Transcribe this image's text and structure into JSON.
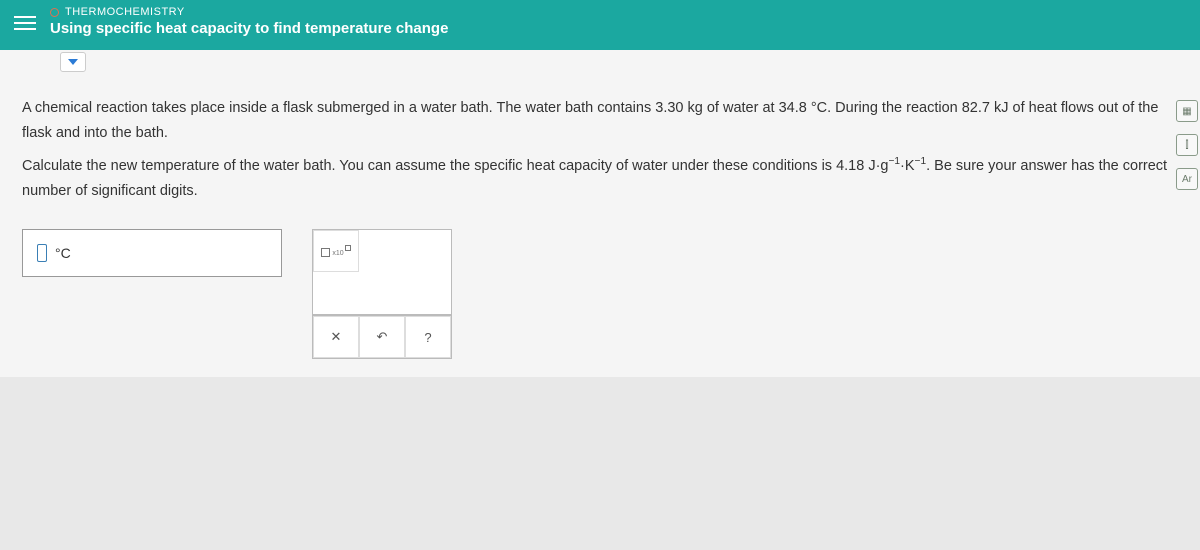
{
  "header": {
    "category": "THERMOCHEMISTRY",
    "topic": "Using specific heat capacity to find temperature change"
  },
  "problem": {
    "paragraph1_part1": "A chemical reaction takes place inside a flask submerged in a water bath. The water bath contains ",
    "mass": "3.30 kg",
    "paragraph1_part2": " of water at ",
    "temp": "34.8 °C",
    "paragraph1_part3": ". During the reaction ",
    "energy": "82.7 kJ",
    "paragraph1_part4": " of heat flows out of the flask and into the bath.",
    "paragraph2_part1": "Calculate the new temperature of the water bath. You can assume the specific heat capacity of water under these conditions is ",
    "heat_capacity": "4.18 J·g",
    "heat_capacity_unit_sup1": "−1",
    "heat_capacity_unit_mid": "·K",
    "heat_capacity_unit_sup2": "−1",
    "paragraph2_part2": ". Be sure your answer has the correct number of significant digits."
  },
  "answer": {
    "unit": "°C"
  },
  "tools": {
    "x10_label": "x10",
    "clear": "✕",
    "undo": "↶",
    "help": "?"
  },
  "side": {
    "calc": "▦",
    "graph": "⫿",
    "table": "Ar"
  }
}
